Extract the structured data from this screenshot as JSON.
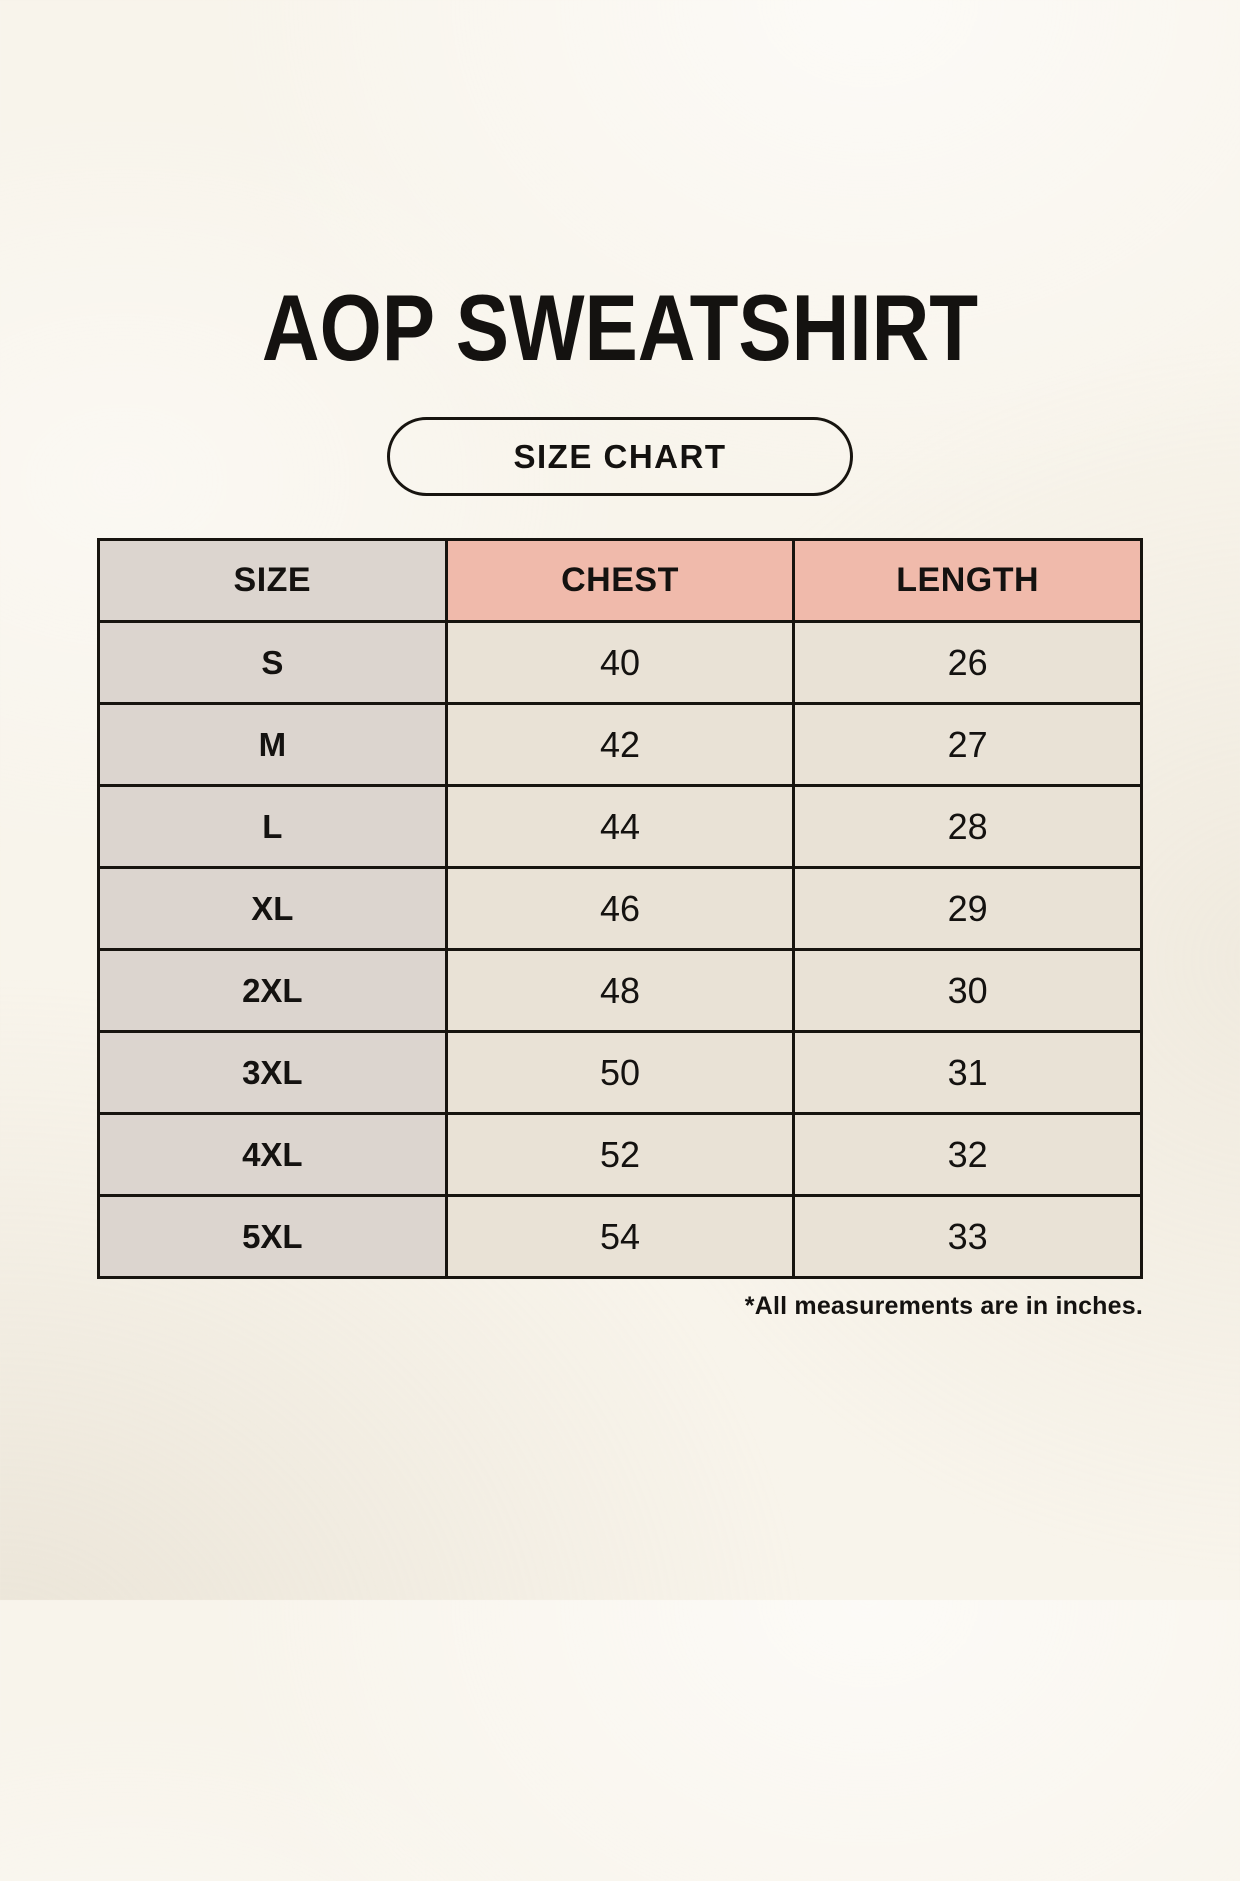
{
  "page": {
    "title": "AOP SWEATSHIRT",
    "size_chart_label": "SIZE CHART",
    "footnote": "*All measurements are in inches."
  },
  "colors": {
    "page_bg": "#F8F4EB",
    "neutral_cell": "#DCD5CF",
    "accent_cell": "#F0BAAB",
    "value_cell": "#E9E2D6",
    "line": "#17140F",
    "ink": "#141210"
  },
  "chart_data": {
    "type": "table",
    "title": "AOP SWEATSHIRT",
    "subtitle": "SIZE CHART",
    "units": "inches",
    "columns": [
      "SIZE",
      "CHEST",
      "LENGTH"
    ],
    "rows": [
      {
        "size": "S",
        "chest": "40",
        "length": "26"
      },
      {
        "size": "M",
        "chest": "42",
        "length": "27"
      },
      {
        "size": "L",
        "chest": "44",
        "length": "28"
      },
      {
        "size": "XL",
        "chest": "46",
        "length": "29"
      },
      {
        "size": "2XL",
        "chest": "48",
        "length": "30"
      },
      {
        "size": "3XL",
        "chest": "50",
        "length": "31"
      },
      {
        "size": "4XL",
        "chest": "52",
        "length": "32"
      },
      {
        "size": "5XL",
        "chest": "54",
        "length": "33"
      }
    ],
    "footnote": "*All measurements are in inches."
  }
}
